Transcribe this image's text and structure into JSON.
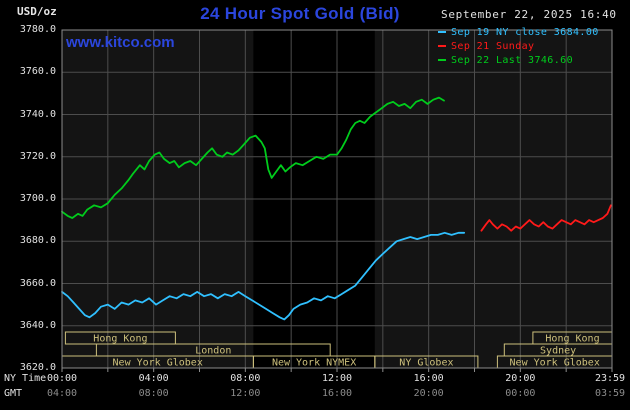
{
  "header": {
    "units_label": "USD/oz",
    "title": "24 Hour Spot Gold (Bid)",
    "datetime": "September 22, 2025 16:40",
    "watermark": "www.kitco.com"
  },
  "legend": {
    "items": [
      {
        "label": "Sep 19 NY close 3684.00",
        "color": "#30c0ff"
      },
      {
        "label": "Sep 21 Sunday",
        "color": "#ff1a1a"
      },
      {
        "label": "Sep 22 Last 3746.60",
        "color": "#00cc1c"
      }
    ]
  },
  "axes": {
    "ny_time_label": "NY Time",
    "gmt_label": "GMT",
    "y_ticks": [
      "3780.0",
      "3760.0",
      "3740.0",
      "3720.0",
      "3700.0",
      "3680.0",
      "3660.0",
      "3640.0",
      "3620.0"
    ],
    "x_ticks_ny": [
      "00:00",
      "04:00",
      "08:00",
      "12:00",
      "16:00",
      "20:00",
      "23:59"
    ],
    "x_ticks_gmt": [
      "04:00",
      "08:00",
      "12:00",
      "16:00",
      "20:00",
      "00:00",
      "03:59"
    ]
  },
  "sessions": [
    {
      "row": 0,
      "label": "Hong Kong",
      "start_h": 0.15,
      "end_h": 4.95
    },
    {
      "row": 0,
      "label": "Hong Kong",
      "start_h": 20.55,
      "end_h": 24.0
    },
    {
      "row": 1,
      "label": "London",
      "start_h": 1.5,
      "end_h": 11.7
    },
    {
      "row": 1,
      "label": "Sydney",
      "start_h": 19.3,
      "end_h": 24.0
    },
    {
      "row": 2,
      "label": "New York Globex",
      "start_h": 0.0,
      "end_h": 8.35
    },
    {
      "row": 2,
      "label": "New York NYMEX",
      "start_h": 8.35,
      "end_h": 13.65
    },
    {
      "row": 2,
      "label": "NY Globex",
      "start_h": 13.65,
      "end_h": 18.15
    },
    {
      "row": 2,
      "label": "New York Globex",
      "start_h": 19.0,
      "end_h": 24.0
    }
  ],
  "colors": {
    "background": "#000000",
    "plot_background": "#141414",
    "nymex_band": "#000000",
    "grid": "#4d4d4d",
    "border": "#8c8c8c",
    "session_box": "#cdc07c",
    "brand_blue": "#2b46dd",
    "axis_text": "#e2e2e2",
    "gmt_text": "#8c8c8c"
  },
  "chart_data": {
    "type": "line",
    "title": "24 Hour Spot Gold (Bid)",
    "xlabel": "NY Time (hours, 00:00-23:59)",
    "ylabel": "USD/oz",
    "xlim": [
      0,
      24
    ],
    "ylim": [
      3620,
      3780
    ],
    "y_gridline_interval": 20,
    "x_gridline_interval_hours": 2,
    "grid": true,
    "legend_position": "top-right",
    "nymex_band_hours": [
      8.35,
      13.65
    ],
    "series": [
      {
        "id": "sep19-ny-close",
        "name": "Sep 19 NY close",
        "close_value": 3684.0,
        "color": "#30c0ff",
        "points": [
          [
            0,
            3656
          ],
          [
            0.25,
            3654
          ],
          [
            0.5,
            3651
          ],
          [
            0.75,
            3648
          ],
          [
            1,
            3645
          ],
          [
            1.2,
            3644
          ],
          [
            1.45,
            3646
          ],
          [
            1.7,
            3649
          ],
          [
            2,
            3650
          ],
          [
            2.3,
            3648
          ],
          [
            2.6,
            3651
          ],
          [
            2.9,
            3650
          ],
          [
            3.2,
            3652
          ],
          [
            3.5,
            3651
          ],
          [
            3.8,
            3653
          ],
          [
            4.1,
            3650
          ],
          [
            4.4,
            3652
          ],
          [
            4.7,
            3654
          ],
          [
            5,
            3653
          ],
          [
            5.3,
            3655
          ],
          [
            5.6,
            3654
          ],
          [
            5.9,
            3656
          ],
          [
            6.2,
            3654
          ],
          [
            6.5,
            3655
          ],
          [
            6.8,
            3653
          ],
          [
            7.1,
            3655
          ],
          [
            7.4,
            3654
          ],
          [
            7.7,
            3656
          ],
          [
            8,
            3654
          ],
          [
            8.3,
            3652
          ],
          [
            8.6,
            3650
          ],
          [
            8.9,
            3648
          ],
          [
            9.2,
            3646
          ],
          [
            9.5,
            3644
          ],
          [
            9.7,
            3643
          ],
          [
            9.9,
            3645
          ],
          [
            10.1,
            3648
          ],
          [
            10.4,
            3650
          ],
          [
            10.7,
            3651
          ],
          [
            11,
            3653
          ],
          [
            11.3,
            3652
          ],
          [
            11.6,
            3654
          ],
          [
            11.9,
            3653
          ],
          [
            12.2,
            3655
          ],
          [
            12.5,
            3657
          ],
          [
            12.8,
            3659
          ],
          [
            13.1,
            3663
          ],
          [
            13.4,
            3667
          ],
          [
            13.7,
            3671
          ],
          [
            14,
            3674
          ],
          [
            14.3,
            3677
          ],
          [
            14.6,
            3680
          ],
          [
            14.9,
            3681
          ],
          [
            15.2,
            3682
          ],
          [
            15.5,
            3681
          ],
          [
            15.8,
            3682
          ],
          [
            16.1,
            3683
          ],
          [
            16.4,
            3683
          ],
          [
            16.7,
            3684
          ],
          [
            17,
            3683
          ],
          [
            17.3,
            3684
          ],
          [
            17.55,
            3684
          ]
        ]
      },
      {
        "id": "sep21-sunday",
        "name": "Sep 21 Sunday",
        "color": "#ff1a1a",
        "points": [
          [
            18.3,
            3685
          ],
          [
            18.5,
            3688
          ],
          [
            18.65,
            3690
          ],
          [
            18.8,
            3688
          ],
          [
            19,
            3686
          ],
          [
            19.2,
            3688
          ],
          [
            19.4,
            3687
          ],
          [
            19.6,
            3685
          ],
          [
            19.8,
            3687
          ],
          [
            20,
            3686
          ],
          [
            20.2,
            3688
          ],
          [
            20.4,
            3690
          ],
          [
            20.6,
            3688
          ],
          [
            20.8,
            3687
          ],
          [
            21,
            3689
          ],
          [
            21.2,
            3687
          ],
          [
            21.4,
            3686
          ],
          [
            21.6,
            3688
          ],
          [
            21.8,
            3690
          ],
          [
            22,
            3689
          ],
          [
            22.2,
            3688
          ],
          [
            22.4,
            3690
          ],
          [
            22.6,
            3689
          ],
          [
            22.8,
            3688
          ],
          [
            23,
            3690
          ],
          [
            23.2,
            3689
          ],
          [
            23.4,
            3690
          ],
          [
            23.6,
            3691
          ],
          [
            23.8,
            3693
          ],
          [
            23.95,
            3697
          ]
        ]
      },
      {
        "id": "sep22-last",
        "name": "Sep 22",
        "last_value": 3746.6,
        "color": "#00cc1c",
        "points": [
          [
            0,
            3694
          ],
          [
            0.25,
            3692
          ],
          [
            0.45,
            3691
          ],
          [
            0.7,
            3693
          ],
          [
            0.9,
            3692
          ],
          [
            1.1,
            3695
          ],
          [
            1.4,
            3697
          ],
          [
            1.7,
            3696
          ],
          [
            2,
            3698
          ],
          [
            2.3,
            3702
          ],
          [
            2.6,
            3705
          ],
          [
            2.9,
            3709
          ],
          [
            3.1,
            3712
          ],
          [
            3.4,
            3716
          ],
          [
            3.6,
            3714
          ],
          [
            3.8,
            3718
          ],
          [
            4.05,
            3721
          ],
          [
            4.25,
            3722
          ],
          [
            4.45,
            3719
          ],
          [
            4.7,
            3717
          ],
          [
            4.9,
            3718
          ],
          [
            5.1,
            3715
          ],
          [
            5.35,
            3717
          ],
          [
            5.6,
            3718
          ],
          [
            5.85,
            3716
          ],
          [
            6.1,
            3719
          ],
          [
            6.35,
            3722
          ],
          [
            6.55,
            3724
          ],
          [
            6.75,
            3721
          ],
          [
            7,
            3720
          ],
          [
            7.2,
            3722
          ],
          [
            7.45,
            3721
          ],
          [
            7.7,
            3723
          ],
          [
            7.95,
            3726
          ],
          [
            8.2,
            3729
          ],
          [
            8.45,
            3730
          ],
          [
            8.7,
            3727
          ],
          [
            8.85,
            3724
          ],
          [
            9,
            3714
          ],
          [
            9.15,
            3710
          ],
          [
            9.35,
            3713
          ],
          [
            9.55,
            3716
          ],
          [
            9.75,
            3713
          ],
          [
            9.95,
            3715
          ],
          [
            10.2,
            3717
          ],
          [
            10.5,
            3716
          ],
          [
            10.8,
            3718
          ],
          [
            11.1,
            3720
          ],
          [
            11.4,
            3719
          ],
          [
            11.7,
            3721
          ],
          [
            12,
            3721
          ],
          [
            12.2,
            3724
          ],
          [
            12.4,
            3728
          ],
          [
            12.6,
            3733
          ],
          [
            12.8,
            3736
          ],
          [
            13,
            3737
          ],
          [
            13.2,
            3736
          ],
          [
            13.45,
            3739
          ],
          [
            13.7,
            3741
          ],
          [
            13.95,
            3743
          ],
          [
            14.2,
            3745
          ],
          [
            14.45,
            3746
          ],
          [
            14.7,
            3744
          ],
          [
            14.95,
            3745
          ],
          [
            15.2,
            3743
          ],
          [
            15.45,
            3746
          ],
          [
            15.7,
            3747
          ],
          [
            15.95,
            3745
          ],
          [
            16.2,
            3747
          ],
          [
            16.45,
            3748
          ],
          [
            16.67,
            3746.6
          ]
        ]
      }
    ]
  }
}
